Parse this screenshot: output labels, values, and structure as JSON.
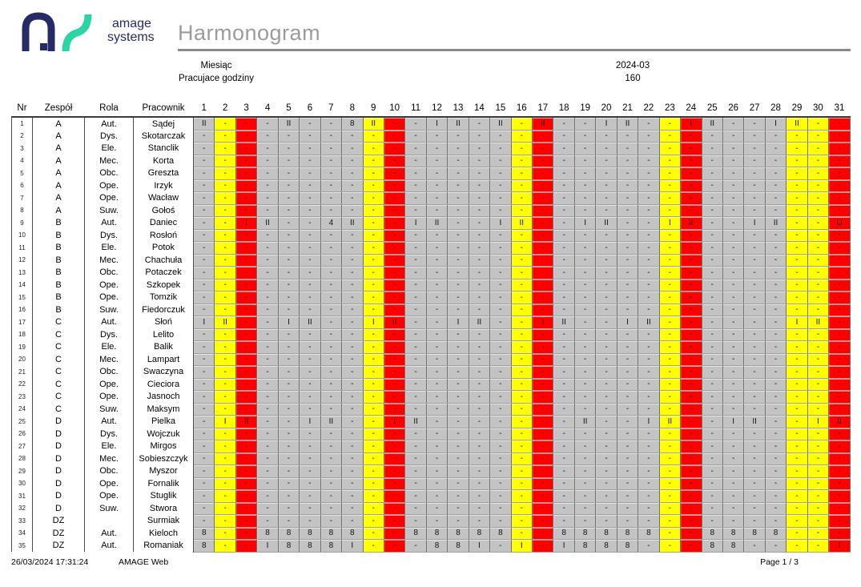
{
  "brand": {
    "line1": "amage",
    "line2": "systems"
  },
  "title": "Harmonogram",
  "meta": {
    "month": {
      "label": "Miesiąc",
      "value": "2024-03"
    },
    "hours": {
      "label": "Pracujace godziny",
      "value": "160"
    }
  },
  "colors": {
    "workday": "#c3c3c3",
    "saturday": "#ffff00",
    "holiday": "#ff0000",
    "brand_navy": "#262a66",
    "brand_teal": "#2bd4a4",
    "title_gray": "#9c9c9c"
  },
  "table": {
    "columns": [
      "Nr",
      "Zespół",
      "Rola",
      "Pracownik"
    ],
    "days": [
      1,
      2,
      3,
      4,
      5,
      6,
      7,
      8,
      9,
      10,
      11,
      12,
      13,
      14,
      15,
      16,
      17,
      18,
      19,
      20,
      21,
      22,
      23,
      24,
      25,
      26,
      27,
      28,
      29,
      30,
      31
    ],
    "day_types": [
      "work",
      "sat",
      "sun",
      "work",
      "work",
      "work",
      "work",
      "work",
      "sat",
      "sun",
      "work",
      "work",
      "work",
      "work",
      "work",
      "sat",
      "sun",
      "work",
      "work",
      "work",
      "work",
      "work",
      "sat",
      "sun",
      "work",
      "work",
      "work",
      "work",
      "sat",
      "sat",
      "sun"
    ],
    "rows": [
      {
        "nr": 1,
        "team": "A",
        "role": "Aut.",
        "name": "Sądej",
        "cells": "II - - - II - - 8 II - - I II - II - II - - I II - - I II - - I II - -"
      },
      {
        "nr": 2,
        "team": "A",
        "role": "Dys.",
        "name": "Skotarczak",
        "cells": "- - - - - - - - - - - - - - - - - - - - - - - - - - - - - - -"
      },
      {
        "nr": 3,
        "team": "A",
        "role": "Ele.",
        "name": "Stanclik",
        "cells": "- - - - - - - - - - - - - - - - - - - - - - - - - - - - - - -"
      },
      {
        "nr": 4,
        "team": "A",
        "role": "Mec.",
        "name": "Korta",
        "cells": "- - - - - - - - - - - - - - - - - - - - - - - - - - - - - - -"
      },
      {
        "nr": 5,
        "team": "A",
        "role": "Obc.",
        "name": "Greszta",
        "cells": "- - - - - - - - - - - - - - - - - - - - - - - - - - - - - - -"
      },
      {
        "nr": 6,
        "team": "A",
        "role": "Ope.",
        "name": "Irzyk",
        "cells": "- - - - - - - - - - - - - - - - - - - - - - - - - - - - - - -"
      },
      {
        "nr": 7,
        "team": "A",
        "role": "Ope.",
        "name": "Wacław",
        "cells": "- - - - - - - - - - - - - - - - - - - - - - - - - - - - - - -"
      },
      {
        "nr": 8,
        "team": "A",
        "role": "Suw.",
        "name": "Gołoś",
        "cells": "- - - - - - - - - - - - - - - - - - - - - - - - - - - - - - -"
      },
      {
        "nr": 9,
        "team": "B",
        "role": "Aut.",
        "name": "Daniec",
        "cells": "- - I II - - 4 II - - I II - - I II - - I II - - I II - - I II - - U"
      },
      {
        "nr": 10,
        "team": "B",
        "role": "Dys.",
        "name": "Rosłoń",
        "cells": "- - - - - - - - - - - - - - - - - - - - - - - - - - - - - - -"
      },
      {
        "nr": 11,
        "team": "B",
        "role": "Ele.",
        "name": "Potok",
        "cells": "- - - - - - - - - - - - - - - - - - - - - - - - - - - - - - -"
      },
      {
        "nr": 12,
        "team": "B",
        "role": "Mec.",
        "name": "Chachuła",
        "cells": "- - - - - - - - - - - - - - - - - - - - - - - - - - - - - - -"
      },
      {
        "nr": 13,
        "team": "B",
        "role": "Obc.",
        "name": "Potaczek",
        "cells": "- - - - - - - - - - - - - - - - - - - - - - - - - - - - - - -"
      },
      {
        "nr": 14,
        "team": "B",
        "role": "Ope.",
        "name": "Szkopek",
        "cells": "- - - - - - - - - - - - - - - - - - - - - - - - - - - - - - -"
      },
      {
        "nr": 15,
        "team": "B",
        "role": "Ope.",
        "name": "Tomzik",
        "cells": "- - - - - - - - - - - - - - - - - - - - - - - - - - - - - - -"
      },
      {
        "nr": 16,
        "team": "B",
        "role": "Suw.",
        "name": "Fiedorczuk",
        "cells": "- - - - - - - - - - - - - - - - - - - - - - - - - - - - - - -"
      },
      {
        "nr": 17,
        "team": "C",
        "role": "Aut.",
        "name": "Słoń",
        "cells": "I II - - I II - - I II - - I II - - I II - - I II - - - - - - I II -"
      },
      {
        "nr": 18,
        "team": "C",
        "role": "Dys.",
        "name": "Lelito",
        "cells": "- - - - - - - - - - - - - - - - - - - - - - - - - - - - - - -"
      },
      {
        "nr": 19,
        "team": "C",
        "role": "Ele.",
        "name": "Balik",
        "cells": "- - - - - - - - - - - - - - - - - - - - - - - - - - - - - - -"
      },
      {
        "nr": 20,
        "team": "C",
        "role": "Mec.",
        "name": "Lampart",
        "cells": "- - - - - - - - - - - - - - - - - - - - - - - - - - - - - - -"
      },
      {
        "nr": 21,
        "team": "C",
        "role": "Obc.",
        "name": "Swaczyna",
        "cells": "- - - - - - - - - - - - - - - - - - - - - - - - - - - - - - -"
      },
      {
        "nr": 22,
        "team": "C",
        "role": "Ope.",
        "name": "Cieciora",
        "cells": "- - - - - - - - - - - - - - - - - - - - - - - - - - - - - - -"
      },
      {
        "nr": 23,
        "team": "C",
        "role": "Ope.",
        "name": "Jasnoch",
        "cells": "- - - - - - - - - - - - - - - - - - - - - - - - - - - - - - -"
      },
      {
        "nr": 24,
        "team": "C",
        "role": "Suw.",
        "name": "Maksym",
        "cells": "- - - - - - - - - - - - - - - - - - - - - - - - - - - - - - -"
      },
      {
        "nr": 25,
        "team": "D",
        "role": "Aut.",
        "name": "Pielka",
        "cells": "- I II - - I II - - I II - - - - - - - II - - I II - - I II - - I II"
      },
      {
        "nr": 26,
        "team": "D",
        "role": "Dys.",
        "name": "Wojczuk",
        "cells": "- - - - - - - - - - - - - - - - - - - - - - - - - - - - - - -"
      },
      {
        "nr": 27,
        "team": "D",
        "role": "Ele.",
        "name": "Mirgos",
        "cells": "- - - - - - - - - - - - - - - - - - - - - - - - - - - - - - -"
      },
      {
        "nr": 28,
        "team": "D",
        "role": "Mec.",
        "name": "Sobieszczyk",
        "cells": "- - - - - - - - - - - - - - - - - - - - - - - - - - - - - - -"
      },
      {
        "nr": 29,
        "team": "D",
        "role": "Obc.",
        "name": "Myszor",
        "cells": "- - - - - - - - - - - - - - - - - - - - - - - - - - - - - - -"
      },
      {
        "nr": 30,
        "team": "D",
        "role": "Ope.",
        "name": "Fornalik",
        "cells": "- - - - - - - - - - - - - - - - - - - - - - - - - - - - - - -"
      },
      {
        "nr": 31,
        "team": "D",
        "role": "Ope.",
        "name": "Stuglik",
        "cells": "- - - - - - - - - - - - - - - - - - - - - - - - - - - - - - -"
      },
      {
        "nr": 32,
        "team": "D",
        "role": "Suw.",
        "name": "Stwora",
        "cells": "- - - - - - - - - - - - - - - - - - - - - - - - - - - - - - -"
      },
      {
        "nr": 33,
        "team": "DZ",
        "role": "",
        "name": "Surmiak",
        "cells": "- - - - - - - - - - - - - - - - - - - - - - - - - - - - - - -"
      },
      {
        "nr": 34,
        "team": "DZ",
        "role": "Aut.",
        "name": "Kieloch",
        "cells": "8 - - 8 8 8 8 8 - - 8 8 8 8 8 - - 8 8 8 8 8 - - 8 8 8 8 - - -"
      },
      {
        "nr": 35,
        "team": "DZ",
        "role": "Aut.",
        "name": "Romaniak",
        "cells": "8 - - I 8 8 8 I - - - 8 8 I - I - I 8 8 8 - - - 8 8 - - - - I"
      }
    ]
  },
  "footer": {
    "timestamp": "26/03/2024 17:31:24",
    "app_name": "AMAGE Web",
    "page": "Page 1 / 3"
  }
}
